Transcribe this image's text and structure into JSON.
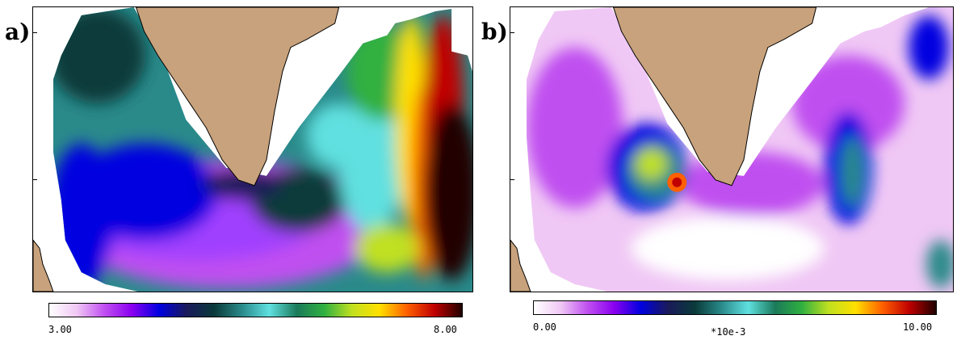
{
  "panels": [
    {
      "label": "a)",
      "colorbar": {
        "min_label": "3.00",
        "max_label": "8.00",
        "scale_label": ""
      },
      "colors": {
        "land": "#c8a27c"
      }
    },
    {
      "label": "b)",
      "colorbar": {
        "min_label": "0.00",
        "max_label": "10.00",
        "scale_label": "*10e-3"
      },
      "colors": {
        "land": "#c8a27c"
      }
    }
  ],
  "colormap": [
    "#ffffff",
    "#f0c8f5",
    "#c050f0",
    "#8a00f0",
    "#0000e0",
    "#1a1a5a",
    "#0a3a3a",
    "#2a8a8a",
    "#60e0e0",
    "#1a7a5a",
    "#30b040",
    "#c0e020",
    "#ffe000",
    "#ff6000",
    "#c00000",
    "#200000"
  ]
}
